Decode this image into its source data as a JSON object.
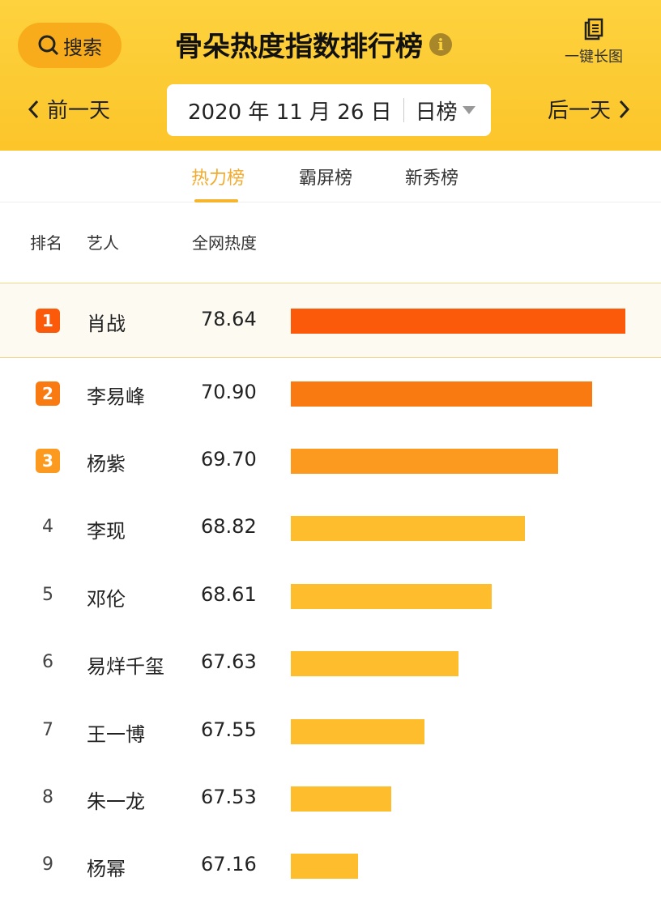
{
  "header": {
    "search_label": "搜索",
    "title": "骨朵热度指数排行榜",
    "info_icon": "info-icon",
    "long_image_label": "一键长图",
    "prev_label": "前一天",
    "next_label": "后一天",
    "date": "2020 年 11 月 26 日",
    "period": "日榜"
  },
  "tabs": [
    {
      "label": "热力榜",
      "active": true
    },
    {
      "label": "霸屏榜",
      "active": false
    },
    {
      "label": "新秀榜",
      "active": false
    }
  ],
  "columns": {
    "rank": "排名",
    "artist": "艺人",
    "heat": "全网热度"
  },
  "colors": {
    "header": "#fcc52a",
    "rank1": "#fa5a0a",
    "rank2": "#fa7a12",
    "rank3": "#fb9a1e",
    "bar_default": "#fdbd2c",
    "active_tab": "#f2ab2e"
  },
  "rows": [
    {
      "rank": "1",
      "name": "肖战",
      "value": "78.64",
      "bar_fraction": 1.0
    },
    {
      "rank": "2",
      "name": "李易峰",
      "value": "70.90",
      "bar_fraction": 0.9
    },
    {
      "rank": "3",
      "name": "杨紫",
      "value": "69.70",
      "bar_fraction": 0.8
    },
    {
      "rank": "4",
      "name": "李现",
      "value": "68.82",
      "bar_fraction": 0.7
    },
    {
      "rank": "5",
      "name": "邓伦",
      "value": "68.61",
      "bar_fraction": 0.6
    },
    {
      "rank": "6",
      "name": "易烊千玺",
      "value": "67.63",
      "bar_fraction": 0.5
    },
    {
      "rank": "7",
      "name": "王一博",
      "value": "67.55",
      "bar_fraction": 0.4
    },
    {
      "rank": "8",
      "name": "朱一龙",
      "value": "67.53",
      "bar_fraction": 0.3
    },
    {
      "rank": "9",
      "name": "杨幂",
      "value": "67.16",
      "bar_fraction": 0.2
    }
  ]
}
